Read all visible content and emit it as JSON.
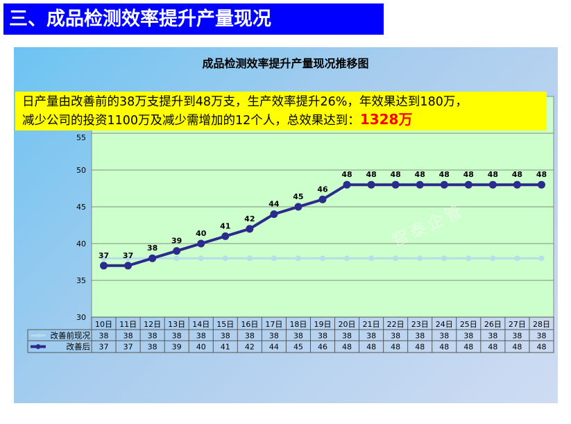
{
  "slide_title": "三、成品检测效率提升产量现况",
  "note": {
    "line1": "日产量由改善前的38万支提升到48万支，生产效率提升26%，年效果达到180万，",
    "line2": "减少公司的投资1100万及减少需增加的12个人，总效果达到：",
    "highlight": "1328万"
  },
  "watermark": "智泰企管",
  "colors": {
    "title_bar": "#0000ff",
    "plot_bg": "#ccffcc",
    "before": "#b7dde8",
    "after": "#2b2b8c",
    "note_bg": "#ffff00",
    "highlight": "#ff0000"
  },
  "chart_data": {
    "type": "line",
    "title": "成品检测效率提升产量现况推移图",
    "categories": [
      "10日",
      "11日",
      "12日",
      "13日",
      "14日",
      "15日",
      "16日",
      "17日",
      "18日",
      "19日",
      "20日",
      "21日",
      "22日",
      "23日",
      "24日",
      "25日",
      "26日",
      "27日",
      "28日"
    ],
    "series": [
      {
        "name": "改善前现况",
        "values": [
          38,
          38,
          38,
          38,
          38,
          38,
          38,
          38,
          38,
          38,
          38,
          38,
          38,
          38,
          38,
          38,
          38,
          38,
          38
        ]
      },
      {
        "name": "改善后",
        "values": [
          37,
          37,
          38,
          39,
          40,
          41,
          42,
          44,
          45,
          46,
          48,
          48,
          48,
          48,
          48,
          48,
          48,
          48,
          48
        ]
      }
    ],
    "ylim": [
      30,
      60
    ],
    "yticks": [
      30,
      35,
      40,
      45,
      50,
      55
    ],
    "grid": true,
    "legend": "data-table"
  }
}
